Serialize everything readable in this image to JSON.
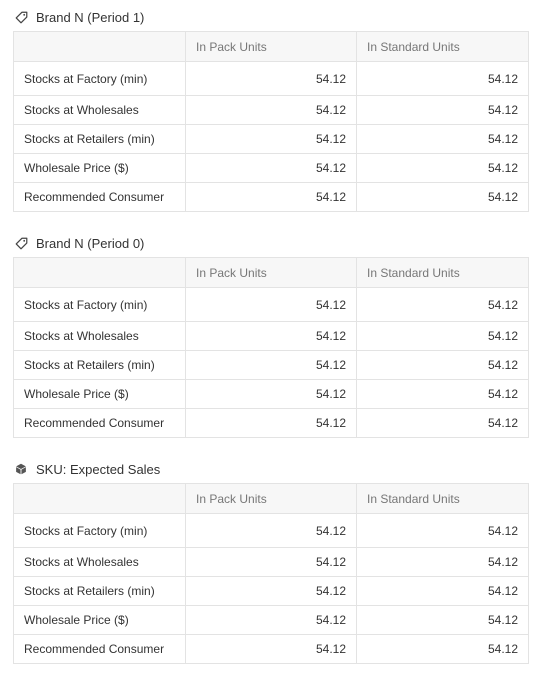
{
  "sections": [
    {
      "icon": "tag-icon",
      "title": "Brand N (Period 1)",
      "columns": [
        "",
        "In Pack Units",
        "In Standard Units"
      ],
      "rows": [
        {
          "label": "Stocks at Factory (min)",
          "pack": "54.12",
          "standard": "54.12"
        },
        {
          "label": "Stocks at Wholesales",
          "pack": "54.12",
          "standard": "54.12"
        },
        {
          "label": "Stocks at Retailers (min)",
          "pack": "54.12",
          "standard": "54.12"
        },
        {
          "label": "Wholesale Price ($)",
          "pack": "54.12",
          "standard": "54.12"
        },
        {
          "label": "Recommended Consumer",
          "pack": "54.12",
          "standard": "54.12"
        }
      ]
    },
    {
      "icon": "tag-icon",
      "title": "Brand N (Period 0)",
      "columns": [
        "",
        "In Pack Units",
        "In Standard Units"
      ],
      "rows": [
        {
          "label": "Stocks at Factory (min)",
          "pack": "54.12",
          "standard": "54.12"
        },
        {
          "label": "Stocks at Wholesales",
          "pack": "54.12",
          "standard": "54.12"
        },
        {
          "label": "Stocks at Retailers (min)",
          "pack": "54.12",
          "standard": "54.12"
        },
        {
          "label": "Wholesale Price ($)",
          "pack": "54.12",
          "standard": "54.12"
        },
        {
          "label": "Recommended Consumer",
          "pack": "54.12",
          "standard": "54.12"
        }
      ]
    },
    {
      "icon": "box-icon",
      "title": "SKU: Expected Sales",
      "columns": [
        "",
        "In Pack Units",
        "In Standard Units"
      ],
      "rows": [
        {
          "label": "Stocks at Factory (min)",
          "pack": "54.12",
          "standard": "54.12"
        },
        {
          "label": "Stocks at Wholesales",
          "pack": "54.12",
          "standard": "54.12"
        },
        {
          "label": "Stocks at Retailers (min)",
          "pack": "54.12",
          "standard": "54.12"
        },
        {
          "label": "Wholesale Price ($)",
          "pack": "54.12",
          "standard": "54.12"
        },
        {
          "label": "Recommended Consumer",
          "pack": "54.12",
          "standard": "54.12"
        }
      ]
    }
  ]
}
